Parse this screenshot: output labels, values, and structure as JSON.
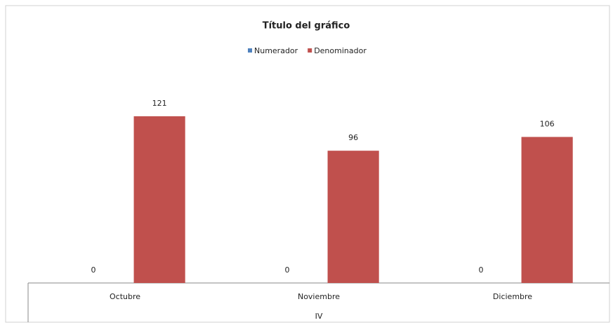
{
  "chart_data": {
    "type": "bar",
    "title": "Título del gráfico",
    "categories": [
      "Octubre",
      "Noviembre",
      "Diciembre"
    ],
    "group": "IV",
    "series": [
      {
        "name": "Numerador",
        "color": "#4f81bd",
        "values": [
          0,
          0,
          0
        ]
      },
      {
        "name": "Denominador",
        "color": "#c0504d",
        "values": [
          121,
          96,
          106
        ]
      }
    ],
    "legend": "top"
  }
}
